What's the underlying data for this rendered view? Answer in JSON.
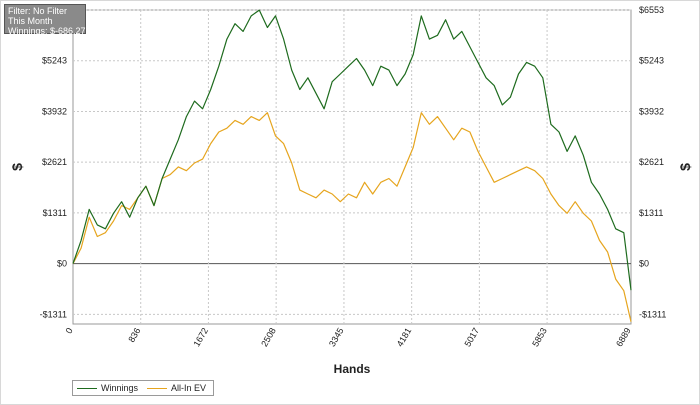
{
  "filter_box": {
    "line1": "Filter: No Filter",
    "line2": "This Month",
    "line3": "Winnings: $-686.27"
  },
  "chart_data": {
    "type": "line",
    "xlabel": "Hands",
    "ylabel_left": "$",
    "ylabel_right": "$",
    "xlim": [
      0,
      6889
    ],
    "ylim": [
      -1560,
      6553
    ],
    "x_ticks": [
      0,
      836,
      1672,
      2508,
      3345,
      4181,
      5017,
      5853,
      6889
    ],
    "x_tick_labels": [
      "0",
      "836",
      "1672",
      "2508",
      "3345",
      "4181",
      "5017",
      "5853",
      "6889"
    ],
    "y_ticks": [
      -1311,
      0,
      1311,
      2621,
      3932,
      5243,
      6553
    ],
    "y_tick_labels": [
      "-$1311",
      "$0",
      "$1311",
      "$2621",
      "$3932",
      "$5243",
      "$6553"
    ],
    "grid": true,
    "legend_position": "bottom-left",
    "series": [
      {
        "name": "Winnings",
        "color": "#1e6b1e",
        "x": [
          0,
          100,
          200,
          300,
          400,
          500,
          600,
          700,
          800,
          900,
          1000,
          1100,
          1200,
          1300,
          1400,
          1500,
          1600,
          1700,
          1800,
          1900,
          2000,
          2100,
          2200,
          2300,
          2400,
          2500,
          2600,
          2700,
          2800,
          2900,
          3000,
          3100,
          3200,
          3300,
          3400,
          3500,
          3600,
          3700,
          3800,
          3900,
          4000,
          4100,
          4200,
          4300,
          4400,
          4500,
          4600,
          4700,
          4800,
          4900,
          5000,
          5100,
          5200,
          5300,
          5400,
          5500,
          5600,
          5700,
          5800,
          5900,
          6000,
          6100,
          6200,
          6300,
          6400,
          6500,
          6600,
          6700,
          6800,
          6889
        ],
        "values": [
          0,
          600,
          1400,
          1000,
          900,
          1300,
          1600,
          1200,
          1700,
          2000,
          1500,
          2200,
          2700,
          3200,
          3800,
          4200,
          4000,
          4500,
          5100,
          5800,
          6200,
          6000,
          6400,
          6550,
          6100,
          6400,
          5800,
          5000,
          4500,
          4800,
          4400,
          4000,
          4700,
          4900,
          5100,
          5300,
          5000,
          4600,
          5100,
          5000,
          4600,
          4900,
          5400,
          6400,
          5800,
          5900,
          6300,
          5800,
          6000,
          5600,
          5200,
          4800,
          4600,
          4100,
          4300,
          4900,
          5200,
          5100,
          4800,
          3600,
          3400,
          2900,
          3300,
          2800,
          2100,
          1800,
          1400,
          900,
          800,
          -686
        ]
      },
      {
        "name": "All-In EV",
        "color": "#e6a51e",
        "x": [
          0,
          100,
          200,
          300,
          400,
          500,
          600,
          700,
          800,
          900,
          1000,
          1100,
          1200,
          1300,
          1400,
          1500,
          1600,
          1700,
          1800,
          1900,
          2000,
          2100,
          2200,
          2300,
          2400,
          2500,
          2600,
          2700,
          2800,
          2900,
          3000,
          3100,
          3200,
          3300,
          3400,
          3500,
          3600,
          3700,
          3800,
          3900,
          4000,
          4100,
          4200,
          4300,
          4400,
          4500,
          4600,
          4700,
          4800,
          4900,
          5000,
          5100,
          5200,
          5300,
          5400,
          5500,
          5600,
          5700,
          5800,
          5900,
          6000,
          6100,
          6200,
          6300,
          6400,
          6500,
          6600,
          6700,
          6800,
          6889
        ],
        "values": [
          0,
          400,
          1200,
          700,
          800,
          1100,
          1500,
          1400,
          1700,
          2000,
          1500,
          2200,
          2300,
          2500,
          2400,
          2600,
          2700,
          3100,
          3400,
          3500,
          3700,
          3600,
          3800,
          3700,
          3900,
          3300,
          3100,
          2600,
          1900,
          1800,
          1700,
          1900,
          1800,
          1600,
          1800,
          1700,
          2100,
          1800,
          2100,
          2200,
          2000,
          2500,
          3000,
          3900,
          3600,
          3800,
          3500,
          3200,
          3500,
          3400,
          2900,
          2500,
          2100,
          2200,
          2300,
          2400,
          2500,
          2400,
          2200,
          1800,
          1500,
          1300,
          1600,
          1300,
          1100,
          600,
          300,
          -400,
          -700,
          -1500
        ]
      }
    ]
  }
}
